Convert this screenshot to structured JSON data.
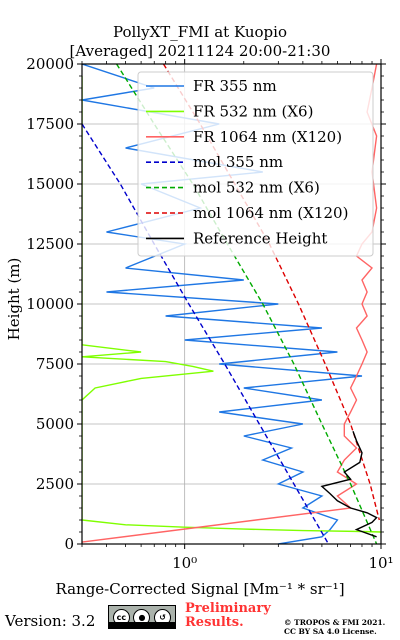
{
  "header": {
    "title_line1": "PollyXT_FMI at Kuopio",
    "title_line2": "[Averaged] 20211124 20:00-21:30"
  },
  "footer": {
    "version": "Version: 3.2",
    "license_badge": "cc-by-sa-badge",
    "preliminary_line1": "Preliminary",
    "preliminary_line2": "Results.",
    "copyright_line1": "© TROPOS & FMI 2021.",
    "copyright_line2": "CC BY SA 4.0 License."
  },
  "chart_data": {
    "type": "line",
    "xlabel": "Range-Corrected Signal [Mm⁻¹ * sr⁻¹]",
    "ylabel": "Height (m)",
    "xscale": "log",
    "xlim": [
      0.3,
      10
    ],
    "ylim": [
      0,
      20000
    ],
    "x_tick_labels": [
      "10⁰",
      "10¹"
    ],
    "y_ticks": [
      0,
      2500,
      5000,
      7500,
      10000,
      12500,
      15000,
      17500,
      20000
    ],
    "grid": true,
    "legend_position": "top-right",
    "colors": {
      "fr355": "#1f77e4",
      "fr532": "#7fff00",
      "fr1064": "#ff6464",
      "mol355": "#0000cc",
      "mol532": "#00aa00",
      "mol1064": "#dd0000",
      "ref": "#000000"
    },
    "series": [
      {
        "name": "FR 355 nm",
        "key": "fr355",
        "style": "solid",
        "points": [
          [
            0.3,
            20000
          ],
          [
            0.7,
            19000
          ],
          [
            0.3,
            18500
          ],
          [
            1.5,
            17500
          ],
          [
            0.5,
            16500
          ],
          [
            2.5,
            15500
          ],
          [
            0.6,
            15000
          ],
          [
            1.2,
            14000
          ],
          [
            0.4,
            13000
          ],
          [
            1.0,
            12500
          ],
          [
            0.5,
            11500
          ],
          [
            2.0,
            11000
          ],
          [
            0.4,
            10500
          ],
          [
            3.0,
            10000
          ],
          [
            0.8,
            9500
          ],
          [
            5.0,
            9000
          ],
          [
            1.0,
            8500
          ],
          [
            6.0,
            8000
          ],
          [
            1.5,
            7500
          ],
          [
            8.0,
            7000
          ],
          [
            2.0,
            6500
          ],
          [
            5.0,
            6000
          ],
          [
            1.5,
            5500
          ],
          [
            4.0,
            5000
          ],
          [
            2.0,
            4500
          ],
          [
            3.5,
            4000
          ],
          [
            2.5,
            3500
          ],
          [
            4.0,
            3000
          ],
          [
            3.0,
            2500
          ],
          [
            5.0,
            2000
          ],
          [
            4.0,
            1500
          ],
          [
            6.0,
            1000
          ],
          [
            5.5,
            600
          ],
          [
            5.0,
            300
          ],
          [
            3.0,
            0
          ]
        ]
      },
      {
        "name": "FR 532 nm (X6)",
        "key": "fr532",
        "style": "solid",
        "points": [
          [
            0.3,
            19500
          ],
          [
            0.3,
            8300
          ],
          [
            0.6,
            8000
          ],
          [
            0.3,
            7800
          ],
          [
            0.8,
            7600
          ],
          [
            1.1,
            7400
          ],
          [
            1.4,
            7200
          ],
          [
            0.6,
            6900
          ],
          [
            0.35,
            6500
          ],
          [
            0.3,
            6000
          ],
          [
            0.3,
            1000
          ],
          [
            0.5,
            800
          ],
          [
            1.0,
            700
          ],
          [
            2.0,
            620
          ],
          [
            4.0,
            560
          ],
          [
            8.0,
            520
          ],
          [
            10.0,
            500
          ]
        ]
      },
      {
        "name": "FR 1064 nm (X120)",
        "key": "fr1064",
        "style": "solid",
        "points": [
          [
            9.5,
            20000
          ],
          [
            9.0,
            19000
          ],
          [
            8.5,
            18000
          ],
          [
            9.5,
            17000
          ],
          [
            9.0,
            15500
          ],
          [
            9.5,
            14000
          ],
          [
            9.0,
            13000
          ],
          [
            8.0,
            12500
          ],
          [
            7.5,
            12000
          ],
          [
            9.0,
            11500
          ],
          [
            8.0,
            11000
          ],
          [
            8.5,
            10500
          ],
          [
            8.0,
            10000
          ],
          [
            8.5,
            9500
          ],
          [
            7.5,
            9000
          ],
          [
            8.0,
            8500
          ],
          [
            8.5,
            8000
          ],
          [
            8.0,
            7500
          ],
          [
            7.5,
            7000
          ],
          [
            7.0,
            6500
          ],
          [
            7.5,
            6000
          ],
          [
            7.0,
            5500
          ],
          [
            6.5,
            5000
          ],
          [
            6.5,
            4500
          ],
          [
            7.5,
            4000
          ],
          [
            6.5,
            3500
          ],
          [
            6.0,
            3000
          ],
          [
            7.5,
            2500
          ],
          [
            6.0,
            2000
          ],
          [
            7.0,
            1500
          ],
          [
            0.3,
            80
          ]
        ]
      },
      {
        "name": "mol 355 nm",
        "key": "mol355",
        "style": "dashed",
        "points": [
          [
            0.3,
            17500
          ],
          [
            0.47,
            15000
          ],
          [
            0.7,
            12500
          ],
          [
            1.05,
            10000
          ],
          [
            1.6,
            7500
          ],
          [
            2.4,
            5000
          ],
          [
            3.6,
            2500
          ],
          [
            5.4,
            0
          ]
        ]
      },
      {
        "name": "mol 532 nm (X6)",
        "key": "mol532",
        "style": "dashed",
        "points": [
          [
            0.45,
            20000
          ],
          [
            0.7,
            17500
          ],
          [
            1.1,
            15000
          ],
          [
            1.65,
            12500
          ],
          [
            2.5,
            10000
          ],
          [
            3.6,
            7500
          ],
          [
            5.0,
            5000
          ],
          [
            7.0,
            2500
          ],
          [
            9.5,
            0
          ]
        ]
      },
      {
        "name": "mol 1064 nm (X120)",
        "key": "mol1064",
        "style": "dashed",
        "points": [
          [
            0.78,
            20000
          ],
          [
            1.2,
            17500
          ],
          [
            1.8,
            15000
          ],
          [
            2.7,
            12500
          ],
          [
            3.8,
            10000
          ],
          [
            5.2,
            7500
          ],
          [
            7.0,
            5000
          ],
          [
            8.8,
            2500
          ],
          [
            9.8,
            1000
          ]
        ]
      },
      {
        "name": "Reference Height",
        "key": "ref",
        "style": "solid",
        "points": [
          [
            7.2,
            4700
          ],
          [
            7.5,
            4300
          ],
          [
            8.0,
            3800
          ],
          [
            7.8,
            3400
          ],
          [
            6.5,
            3000
          ],
          [
            7.0,
            2700
          ],
          [
            5.0,
            2400
          ],
          [
            5.5,
            2100
          ],
          [
            6.0,
            1800
          ],
          [
            7.0,
            1500
          ],
          [
            8.5,
            1300
          ],
          [
            9.5,
            1100
          ],
          [
            9.0,
            900
          ],
          [
            7.5,
            600
          ],
          [
            9.5,
            300
          ]
        ]
      }
    ]
  }
}
